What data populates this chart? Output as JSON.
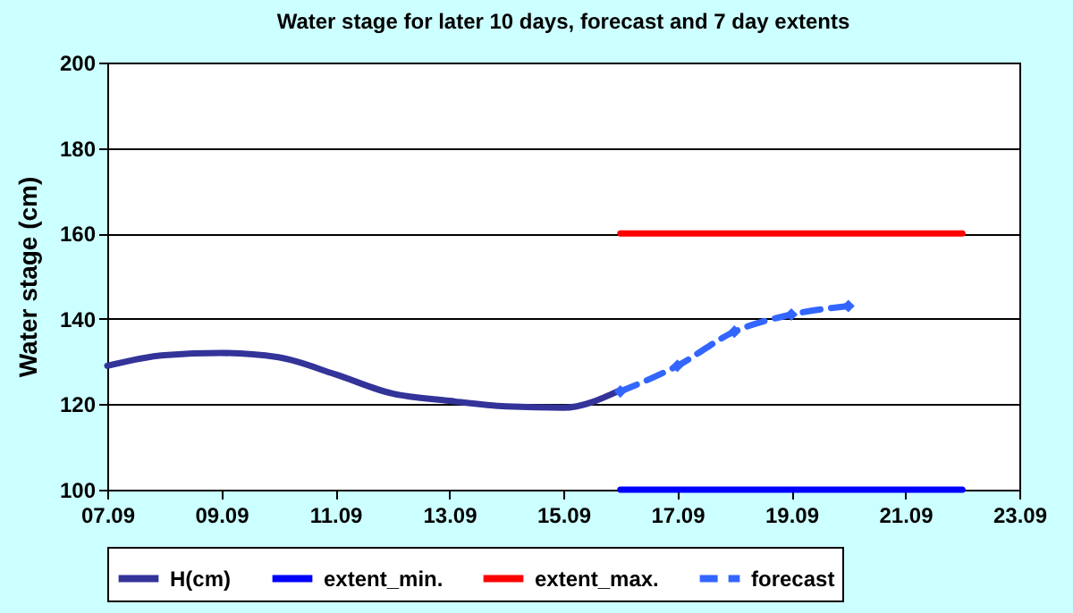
{
  "chart_data": {
    "type": "line",
    "title": "Water stage for later 10 days, forecast and 7 day extents",
    "ylabel": "Water stage (cm)",
    "series": [
      {
        "name": "H(cm)",
        "color": "#333399",
        "x": [
          "--09-07",
          "--09-08",
          "--09-09",
          "--09-10",
          "--09-11",
          "--09-12",
          "--09-13",
          "--09-14",
          "--09-15",
          "--09-16"
        ],
        "values": [
          129,
          131.5,
          132,
          131,
          127,
          122.5,
          120.8,
          119.5,
          119.2,
          123.3
        ]
      },
      {
        "name": "extent_min.",
        "color": "#0000ff",
        "x": [
          "--09-16",
          "--09-22"
        ],
        "values": [
          100,
          100
        ]
      },
      {
        "name": "extent_max.",
        "color": "#ff0000",
        "x": [
          "--09-16",
          "--09-22"
        ],
        "values": [
          160,
          160
        ]
      },
      {
        "name": "forecast",
        "color": "#3366ff",
        "line_style": "dashed",
        "marker": "diamond",
        "x": [
          "--09-16",
          "--09-17",
          "--09-18",
          "--09-19",
          "--09-20"
        ],
        "values": [
          123,
          129,
          137,
          141,
          143
        ]
      }
    ],
    "xlim": [
      "--09-07",
      "--09-23"
    ],
    "xticks": [
      {
        "value": "--09-07",
        "label": "07.09"
      },
      {
        "value": "--09-09",
        "label": "09.09"
      },
      {
        "value": "--09-11",
        "label": "11.09"
      },
      {
        "value": "--09-13",
        "label": "13.09"
      },
      {
        "value": "--09-15",
        "label": "15.09"
      },
      {
        "value": "--09-17",
        "label": "17.09"
      },
      {
        "value": "--09-19",
        "label": "19.09"
      },
      {
        "value": "--09-21",
        "label": "21.09"
      },
      {
        "value": "--09-23",
        "label": "23.09"
      }
    ],
    "ylim": [
      100,
      200
    ],
    "yticks": [
      100,
      120,
      140,
      160,
      180,
      200
    ],
    "grid": "y",
    "legend": "bottom"
  }
}
